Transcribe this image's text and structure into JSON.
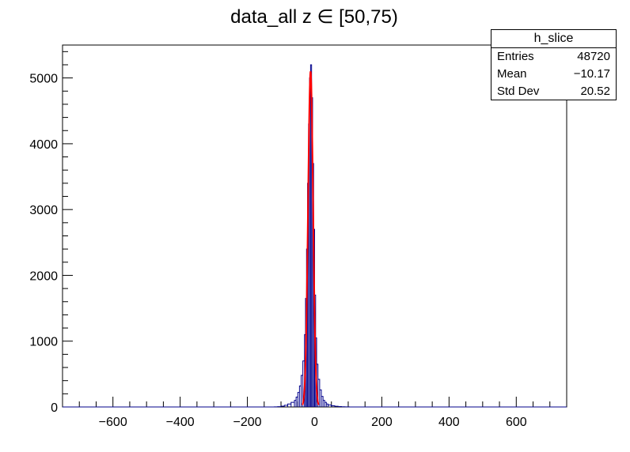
{
  "chart_data": {
    "type": "histogram",
    "title": "data_all z ∈ [50,75)",
    "xlabel": "",
    "ylabel": "",
    "xlim": [
      -750,
      750
    ],
    "ylim": [
      0,
      5500
    ],
    "x_ticks": [
      -600,
      -400,
      -200,
      0,
      200,
      400,
      600
    ],
    "x_tick_labels": [
      "−600",
      "−400",
      "−200",
      "0",
      "200",
      "400",
      "600"
    ],
    "y_ticks": [
      0,
      1000,
      2000,
      3000,
      4000,
      5000
    ],
    "y_tick_labels": [
      "0",
      "1000",
      "2000",
      "3000",
      "4000",
      "5000"
    ],
    "grid": false,
    "line_color": "#00008b",
    "fit_color": "#ff0000",
    "series": [
      {
        "name": "h_slice",
        "bins": [
          [
            -120,
            2
          ],
          [
            -110,
            5
          ],
          [
            -100,
            12
          ],
          [
            -90,
            25
          ],
          [
            -80,
            45
          ],
          [
            -70,
            70
          ],
          [
            -60,
            100
          ],
          [
            -55,
            150
          ],
          [
            -50,
            220
          ],
          [
            -45,
            320
          ],
          [
            -40,
            480
          ],
          [
            -35,
            700
          ],
          [
            -30,
            1100
          ],
          [
            -27,
            1650
          ],
          [
            -24,
            2400
          ],
          [
            -21,
            3400
          ],
          [
            -18,
            4300
          ],
          [
            -15,
            5000
          ],
          [
            -12,
            5200
          ],
          [
            -9,
            4700
          ],
          [
            -6,
            3700
          ],
          [
            -3,
            2700
          ],
          [
            0,
            1700
          ],
          [
            3,
            1050
          ],
          [
            6,
            650
          ],
          [
            10,
            420
          ],
          [
            15,
            260
          ],
          [
            20,
            160
          ],
          [
            25,
            100
          ],
          [
            30,
            70
          ],
          [
            35,
            45
          ],
          [
            40,
            30
          ],
          [
            50,
            18
          ],
          [
            60,
            10
          ],
          [
            70,
            6
          ],
          [
            80,
            3
          ],
          [
            90,
            2
          ],
          [
            100,
            1
          ]
        ]
      }
    ],
    "fit": {
      "type": "gaussian",
      "mean": -12,
      "sigma": 7.5,
      "amplitude": 5100
    }
  },
  "stats": {
    "title": "h_slice",
    "rows": [
      {
        "label": "Entries",
        "value": "48720"
      },
      {
        "label": "Mean",
        "value": "−10.17"
      },
      {
        "label": "Std Dev",
        "value": "20.52"
      }
    ]
  }
}
